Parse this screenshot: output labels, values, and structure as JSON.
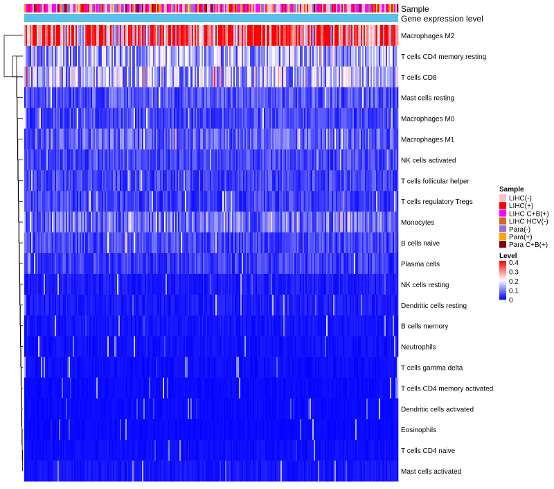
{
  "chart_data": {
    "type": "heatmap",
    "annotation_tracks": [
      "Sample",
      "Gene expression level"
    ],
    "rows": [
      {
        "name": "Macrophages M2",
        "mean": 0.3
      },
      {
        "name": "T cells CD4 memory resting",
        "mean": 0.12
      },
      {
        "name": "T cells CD8",
        "mean": 0.13
      },
      {
        "name": "Mast cells resting",
        "mean": 0.06
      },
      {
        "name": "Macrophages M0",
        "mean": 0.05
      },
      {
        "name": "Macrophages M1",
        "mean": 0.07
      },
      {
        "name": "NK cells activated",
        "mean": 0.05
      },
      {
        "name": "T cells follicular helper",
        "mean": 0.05
      },
      {
        "name": "T cells regulatory  Tregs",
        "mean": 0.045
      },
      {
        "name": "Monocytes",
        "mean": 0.08
      },
      {
        "name": "B cells naive",
        "mean": 0.05
      },
      {
        "name": "Plasma cells",
        "mean": 0.045
      },
      {
        "name": "NK cells resting",
        "mean": 0.02
      },
      {
        "name": "Dendritic cells resting",
        "mean": 0.02
      },
      {
        "name": "B cells memory",
        "mean": 0.015
      },
      {
        "name": "Neutrophils",
        "mean": 0.012
      },
      {
        "name": "T cells gamma delta",
        "mean": 0.01
      },
      {
        "name": "T cells CD4 memory activated",
        "mean": 0.008
      },
      {
        "name": "Dendritic cells activated",
        "mean": 0.008
      },
      {
        "name": "Eosinophils",
        "mean": 0.007
      },
      {
        "name": "T cells CD4 naive",
        "mean": 0.01
      },
      {
        "name": "Mast cells activated",
        "mean": 0.015
      }
    ],
    "legend_sample": {
      "title": "Sample",
      "entries": [
        {
          "label": "LIHC(-)",
          "color": "#ffc0cb"
        },
        {
          "label": "LIHC(+)",
          "color": "#ff0000"
        },
        {
          "label": "LIHC C+B(+)",
          "color": "#ff00ff"
        },
        {
          "label": "LIHC HCV(-)",
          "color": "#d2691e"
        },
        {
          "label": "Para(-)",
          "color": "#9370db"
        },
        {
          "label": "Para(+)",
          "color": "#ffa500"
        },
        {
          "label": "Para C+B(+)",
          "color": "#800000"
        }
      ]
    },
    "legend_level": {
      "title": "Level",
      "ticks": [
        "0.4",
        "0.3",
        "0.2",
        "0.1",
        "0"
      ],
      "min": 0,
      "max": 0.4,
      "colors": {
        "low": "#0000ff",
        "mid": "#ffffff",
        "high": "#ff0000"
      }
    },
    "expression_color": "#5bc0eb",
    "xlabel": "",
    "ylabel": ""
  }
}
